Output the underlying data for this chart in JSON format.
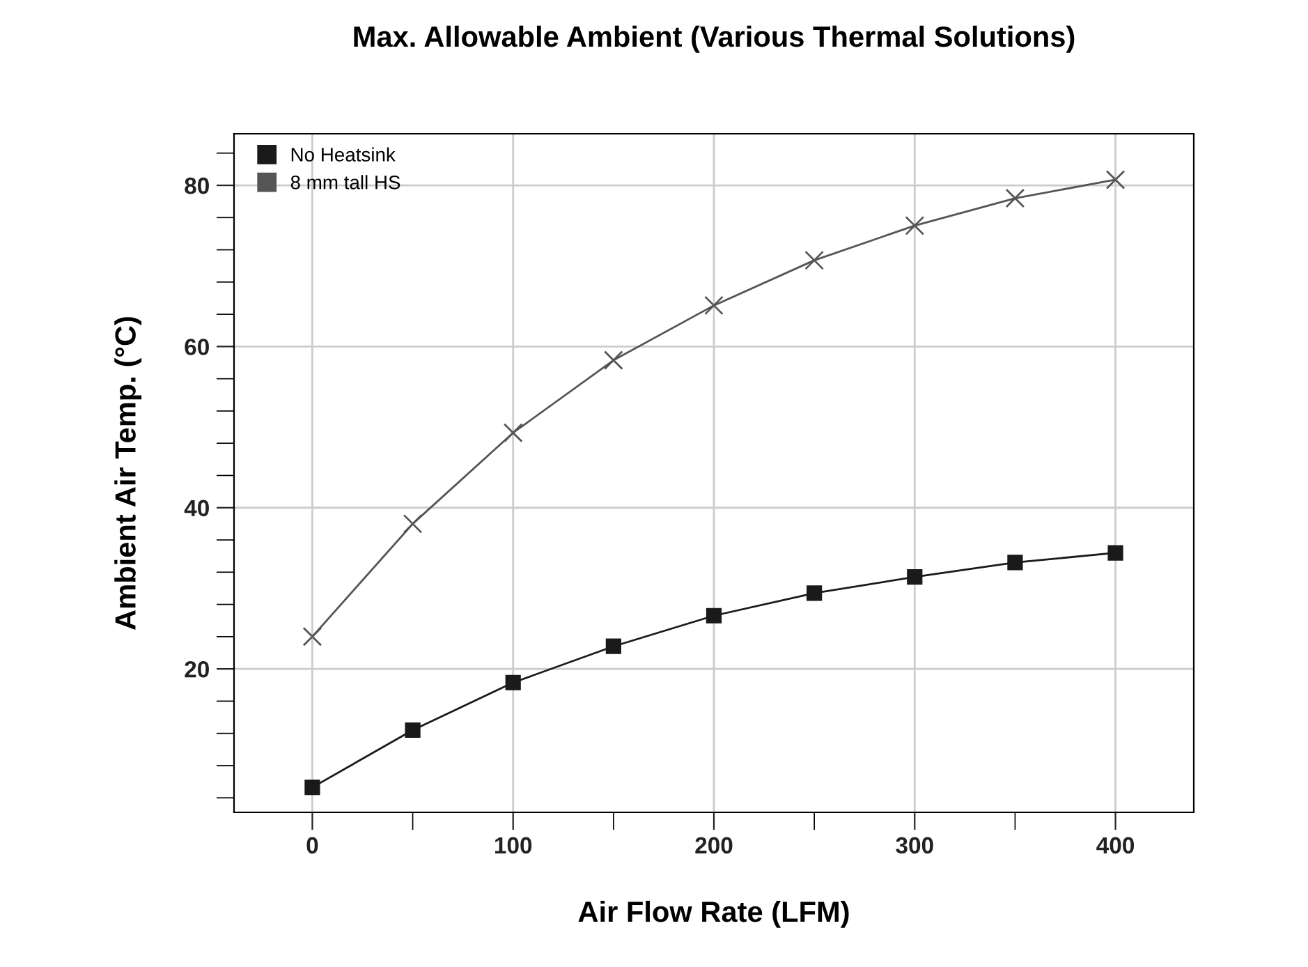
{
  "chart_data": {
    "type": "line",
    "title": "Max. Allowable Ambient (Various Thermal Solutions)",
    "xlabel": "Air Flow Rate (LFM)",
    "ylabel": "Ambient Air Temp. (°C)",
    "x": [
      0,
      50,
      100,
      150,
      200,
      250,
      300,
      350,
      400
    ],
    "series": [
      {
        "name": "No Heatsink",
        "color": "#1a1a1a",
        "marker": "square",
        "values": [
          5.3,
          12.4,
          18.3,
          22.8,
          26.6,
          29.4,
          31.4,
          33.2,
          34.4
        ]
      },
      {
        "name": "8 mm tall HS",
        "color": "#555555",
        "marker": "cross",
        "values": [
          24.0,
          38.0,
          49.3,
          58.3,
          65.1,
          70.7,
          75.0,
          78.4,
          80.7
        ]
      }
    ],
    "xlim": [
      -39,
      439
    ],
    "ylim": [
      2.2,
      86.4
    ],
    "xticks": [
      0,
      {
        "value": 50,
        "label": null
      },
      100,
      {
        "value": 150,
        "label": null
      },
      200,
      {
        "value": 250,
        "label": null
      },
      300,
      {
        "value": 350,
        "label": null
      },
      400
    ],
    "yticks": [
      {
        "value": 4,
        "label": null
      },
      {
        "value": 8,
        "label": null
      },
      {
        "value": 12,
        "label": null
      },
      {
        "value": 16,
        "label": null
      },
      20,
      {
        "value": 24,
        "label": null
      },
      {
        "value": 28,
        "label": null
      },
      {
        "value": 32,
        "label": null
      },
      {
        "value": 36,
        "label": null
      },
      40,
      {
        "value": 44,
        "label": null
      },
      {
        "value": 48,
        "label": null
      },
      {
        "value": 52,
        "label": null
      },
      {
        "value": 56,
        "label": null
      },
      60,
      {
        "value": 64,
        "label": null
      },
      {
        "value": 68,
        "label": null
      },
      {
        "value": 72,
        "label": null
      },
      {
        "value": 76,
        "label": null
      },
      80,
      {
        "value": 84,
        "label": null
      }
    ],
    "grid": true,
    "legend": "top left",
    "line_style": "solid"
  }
}
